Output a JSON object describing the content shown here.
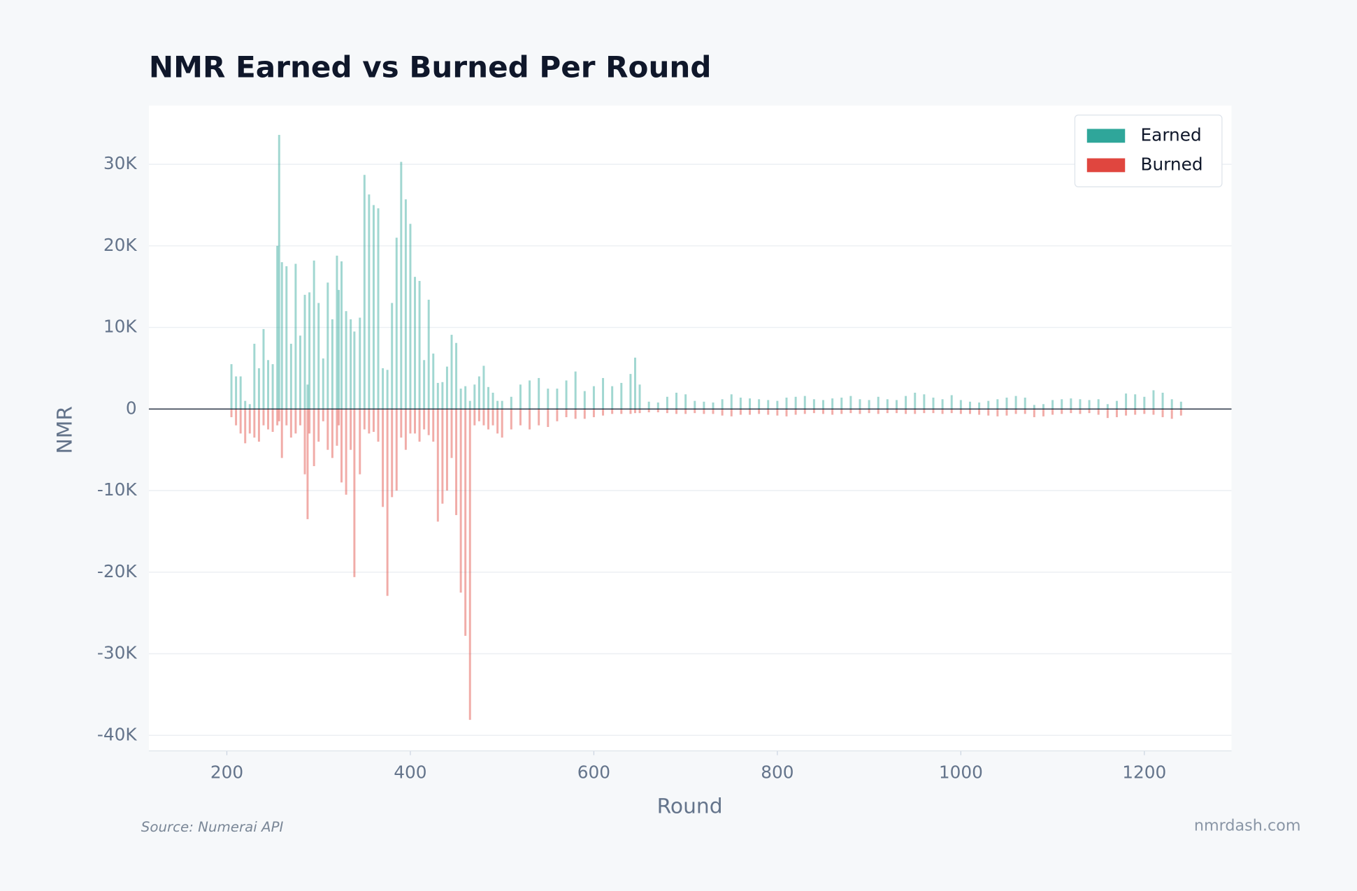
{
  "chart_data": {
    "type": "bar",
    "title": "NMR Earned vs Burned Per Round",
    "x_label": "Round",
    "y_label": "NMR",
    "source": "Source: Numerai API",
    "watermark": "nmrdash.com",
    "x": [
      205,
      210,
      215,
      220,
      225,
      230,
      235,
      240,
      245,
      250,
      255,
      257,
      260,
      265,
      270,
      275,
      280,
      285,
      288,
      290,
      295,
      300,
      305,
      310,
      315,
      320,
      322,
      325,
      330,
      335,
      339,
      345,
      350,
      355,
      360,
      365,
      370,
      375,
      380,
      385,
      390,
      395,
      400,
      405,
      410,
      415,
      420,
      425,
      430,
      435,
      440,
      445,
      450,
      455,
      460,
      465,
      470,
      475,
      480,
      485,
      490,
      495,
      500,
      510,
      520,
      530,
      540,
      550,
      560,
      570,
      580,
      590,
      600,
      610,
      620,
      630,
      640,
      645,
      650,
      660,
      670,
      680,
      690,
      700,
      710,
      720,
      730,
      740,
      750,
      760,
      770,
      780,
      790,
      800,
      810,
      820,
      830,
      840,
      850,
      860,
      870,
      880,
      890,
      900,
      910,
      920,
      930,
      940,
      950,
      960,
      970,
      980,
      990,
      1000,
      1010,
      1020,
      1030,
      1040,
      1050,
      1060,
      1070,
      1080,
      1090,
      1100,
      1110,
      1120,
      1130,
      1140,
      1150,
      1160,
      1170,
      1180,
      1190,
      1200,
      1210,
      1220,
      1230,
      1240
    ],
    "series": [
      {
        "name": "Earned",
        "color": "#2fa69a",
        "values": [
          5500,
          4000,
          4000,
          1000,
          600,
          8000,
          5000,
          9800,
          6000,
          5500,
          20000,
          33600,
          18000,
          17500,
          8000,
          17800,
          9000,
          14000,
          3000,
          14300,
          18200,
          13000,
          6200,
          15500,
          11000,
          18800,
          14600,
          18100,
          12000,
          11000,
          9500,
          11200,
          28700,
          26300,
          25000,
          24600,
          5000,
          4800,
          13000,
          21000,
          30300,
          25700,
          22700,
          16200,
          15700,
          6000,
          13400,
          6800,
          3200,
          3300,
          5200,
          9100,
          8100,
          2500,
          2800,
          1000,
          3000,
          4000,
          5300,
          2700,
          2000,
          1000,
          1000,
          1500,
          3000,
          3500,
          3800,
          2500,
          2500,
          3500,
          4600,
          2200,
          2800,
          3800,
          2800,
          3200,
          4300,
          6300,
          3000,
          900,
          800,
          1500,
          2000,
          1800,
          1000,
          900,
          800,
          1200,
          1800,
          1400,
          1300,
          1200,
          1100,
          1000,
          1400,
          1500,
          1600,
          1200,
          1100,
          1300,
          1400,
          1600,
          1200,
          1100,
          1500,
          1200,
          1100,
          1600,
          2000,
          1800,
          1400,
          1200,
          1700,
          1100,
          900,
          800,
          1000,
          1200,
          1400,
          1600,
          1400,
          500,
          600,
          1100,
          1200,
          1300,
          1200,
          1100,
          1200,
          600,
          1000,
          1900,
          1800,
          1500,
          2300,
          2000,
          1200,
          900
        ]
      },
      {
        "name": "Burned",
        "color": "#e0463f",
        "values": [
          -1000,
          -2000,
          -3000,
          -4200,
          -3000,
          -3500,
          -4000,
          -2000,
          -2500,
          -2800,
          -2000,
          -1500,
          -6000,
          -2000,
          -3500,
          -3000,
          -2000,
          -8000,
          -13500,
          -3000,
          -7000,
          -4000,
          -1500,
          -5000,
          -6000,
          -4500,
          -2000,
          -9000,
          -10500,
          -5000,
          -20600,
          -8000,
          -2500,
          -3000,
          -2800,
          -4000,
          -12000,
          -22900,
          -10800,
          -10000,
          -3500,
          -5000,
          -3000,
          -3000,
          -4000,
          -2500,
          -3200,
          -4000,
          -13800,
          -11600,
          -10000,
          -6000,
          -13000,
          -22500,
          -27800,
          -38100,
          -2000,
          -1500,
          -2000,
          -2500,
          -2000,
          -3000,
          -3500,
          -2500,
          -2000,
          -2500,
          -2000,
          -2200,
          -1500,
          -1000,
          -1200,
          -1200,
          -1000,
          -800,
          -600,
          -600,
          -600,
          -500,
          -500,
          -400,
          -400,
          -500,
          -600,
          -600,
          -500,
          -600,
          -600,
          -800,
          -900,
          -700,
          -700,
          -600,
          -700,
          -800,
          -900,
          -700,
          -600,
          -500,
          -600,
          -700,
          -600,
          -500,
          -600,
          -500,
          -600,
          -500,
          -500,
          -600,
          -600,
          -500,
          -500,
          -600,
          -500,
          -600,
          -600,
          -700,
          -800,
          -900,
          -800,
          -600,
          -600,
          -1000,
          -900,
          -700,
          -600,
          -500,
          -600,
          -500,
          -700,
          -1100,
          -1000,
          -800,
          -700,
          -600,
          -700,
          -1000,
          -1200,
          -800
        ]
      }
    ],
    "xlim": [
      115,
      1295
    ],
    "xticks": [
      200,
      400,
      600,
      800,
      1000,
      1200
    ],
    "ylim": [
      -41900,
      37200
    ],
    "yticks": [
      {
        "value": -40000,
        "label": "-40K"
      },
      {
        "value": -30000,
        "label": "-30K"
      },
      {
        "value": -20000,
        "label": "-20K"
      },
      {
        "value": -10000,
        "label": "-10K"
      },
      0,
      {
        "value": 10000,
        "label": "10K"
      },
      {
        "value": 20000,
        "label": "20K"
      },
      {
        "value": 30000,
        "label": "30K"
      }
    ],
    "grid": true,
    "legend": "upper right"
  }
}
